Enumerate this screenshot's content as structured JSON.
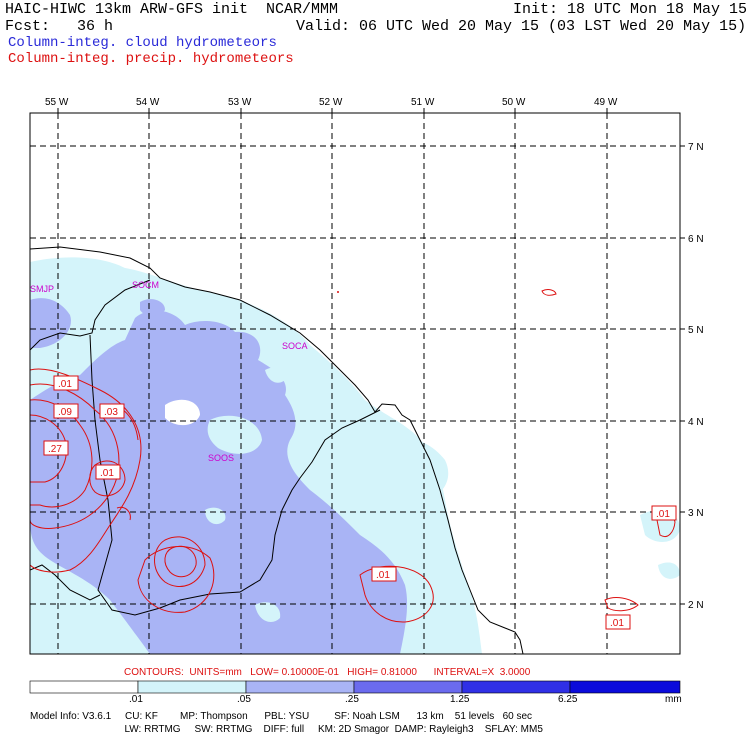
{
  "header": {
    "left_line1": "HAIC-HIWC 13km ARW-GFS init  NCAR/MMM",
    "left_line2": "Fcst:   36 h",
    "legend_cloud": "Column-integ. cloud hydrometeors",
    "legend_precip": "Column-integ. precip. hydrometeors",
    "init": "Init: 18 UTC Mon 18 May 15",
    "valid": "Valid: 06 UTC Wed 20 May 15 (03 LST Wed 20 May 15)"
  },
  "colors": {
    "cloud_legend": "#2a2ad8",
    "precip_contour": "#dd1111",
    "site_label": "#cc00cc",
    "shade_1": "#d4f4fa",
    "shade_2": "#a9b4f5",
    "shade_3": "#6b6bee",
    "shade_4": "#3030e6",
    "shade_5": "#0b0bdb"
  },
  "longitude_labels": [
    "55 W",
    "54 W",
    "53 W",
    "52 W",
    "51 W",
    "50 W",
    "49 W"
  ],
  "latitude_labels": [
    "7 N",
    "6 N",
    "5 N",
    "4 N",
    "3 N",
    "2 N"
  ],
  "sites": [
    "SMJP",
    "SOCM",
    "SOCA",
    "SOOS"
  ],
  "contour_labels": [
    ".01",
    ".09",
    ".03",
    ".27",
    ".01",
    ".01",
    ".01",
    ".01"
  ],
  "contour_info": "CONTOURS:  UNITS=mm   LOW= 0.10000E-01   HIGH= 0.81000      INTERVAL=X  3.0000",
  "colorbar": {
    "ticks": [
      ".01",
      ".05",
      ".25",
      "1.25",
      "6.25"
    ],
    "unit": "mm"
  },
  "model_info": {
    "line1": "Model Info: V3.6.1     CU: KF        MP: Thompson      PBL: YSU         SF: Noah LSM      13 km    51 levels   60 sec",
    "line2": "                                  LW: RRTMG     SW: RRTMG    DIFF: full     KM: 2D Smagor  DAMP: Rayleigh3    SFLAY: MM5"
  }
}
